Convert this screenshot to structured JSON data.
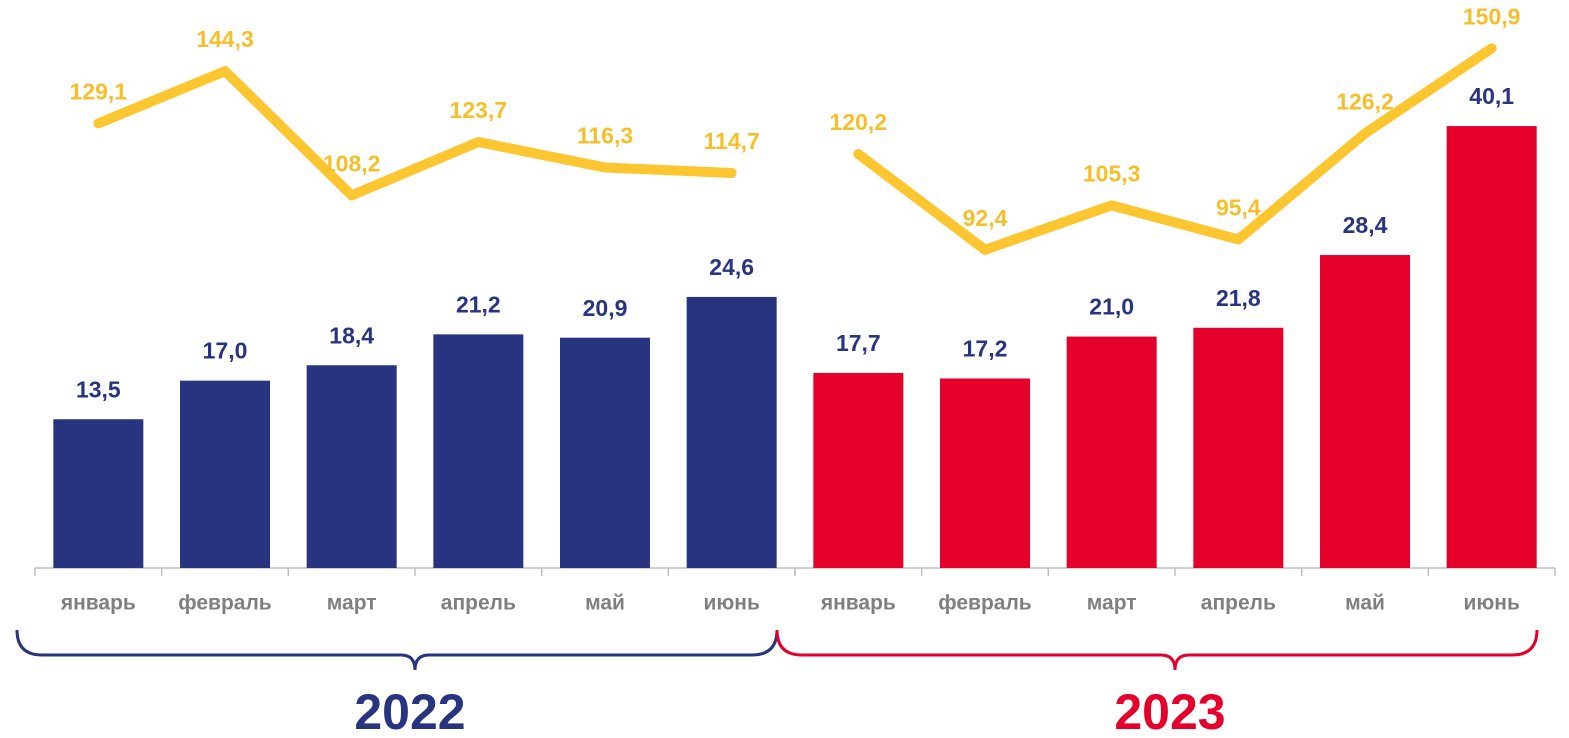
{
  "chart_data": [
    {
      "type": "bar",
      "title": "2022",
      "categories": [
        "январь",
        "февраль",
        "март",
        "апрель",
        "май",
        "июнь"
      ],
      "ylim": [
        0,
        50
      ],
      "y2lim": [
        0,
        160
      ],
      "series": [
        {
          "type": "bar",
          "color": "#283480",
          "values": [
            13.5,
            17.0,
            18.4,
            21.2,
            20.9,
            24.6
          ],
          "value_labels": [
            "13,5",
            "17,0",
            "18,4",
            "21,2",
            "20,9",
            "24,6"
          ]
        },
        {
          "type": "line",
          "axis": "y2",
          "color": "#fcc630",
          "values": [
            129.1,
            144.3,
            108.2,
            123.7,
            116.3,
            114.7
          ],
          "value_labels": [
            "129,1",
            "144,3",
            "108,2",
            "123,7",
            "116,3",
            "114,7"
          ]
        }
      ]
    },
    {
      "type": "bar",
      "title": "2023",
      "categories": [
        "январь",
        "февраль",
        "март",
        "апрель",
        "май",
        "июнь"
      ],
      "ylim": [
        0,
        50
      ],
      "y2lim": [
        0,
        160
      ],
      "series": [
        {
          "type": "bar",
          "color": "#e4002b",
          "values": [
            17.7,
            17.2,
            21.0,
            21.8,
            28.4,
            40.1
          ],
          "value_labels": [
            "17,7",
            "17,2",
            "21,0",
            "21,8",
            "28,4",
            "40,1"
          ]
        },
        {
          "type": "line",
          "axis": "y2",
          "color": "#fcc630",
          "values": [
            120.2,
            92.4,
            105.3,
            95.4,
            126.2,
            150.9
          ],
          "value_labels": [
            "120,2",
            "92,4",
            "105,3",
            "95,4",
            "126,2",
            "150,9"
          ]
        }
      ]
    }
  ]
}
